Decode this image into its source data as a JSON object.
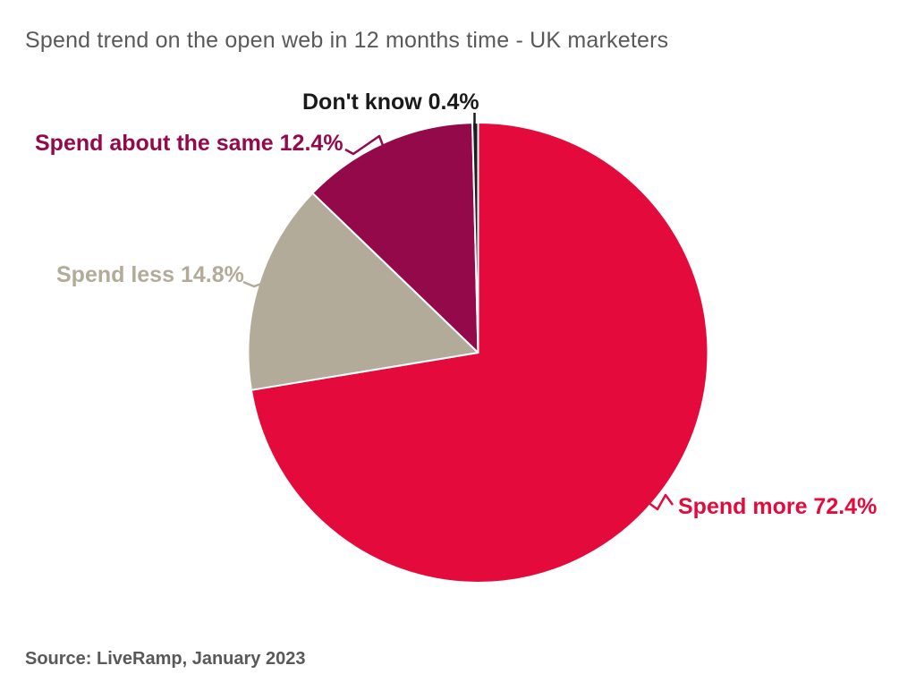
{
  "page": {
    "background": "#FFFFFF"
  },
  "chart_data": {
    "type": "pie",
    "title": "Spend trend on the open web in 12 months time - UK marketers",
    "title_color": "#58595B",
    "source": "Source: LiveRamp, January 2023",
    "source_color": "#58595B",
    "direction": "clockwise",
    "start_angle_deg": 0,
    "legend_position": "none",
    "gridlines": false,
    "slice_border_color": "#FFFFFF",
    "slices": [
      {
        "id": "spend-more",
        "label": "Spend more",
        "value_pct": 72.4,
        "display": "Spend more 72.4%",
        "color": "#E40A3C",
        "label_color": "#E40A3C"
      },
      {
        "id": "spend-less",
        "label": "Spend less",
        "value_pct": 14.8,
        "display": "Spend less 14.8%",
        "color": "#B3AB9A",
        "label_color": "#B3AB9A"
      },
      {
        "id": "spend-about-the-same",
        "label": "Spend about the same",
        "value_pct": 12.4,
        "display": "Spend about the same 12.4%",
        "color": "#93094A",
        "label_color": "#93094A"
      },
      {
        "id": "dont-know",
        "label": "Don't know",
        "value_pct": 0.4,
        "display": "Don't know 0.4%",
        "color": "#1D1D1F",
        "label_color": "#1A1A1A"
      }
    ]
  }
}
